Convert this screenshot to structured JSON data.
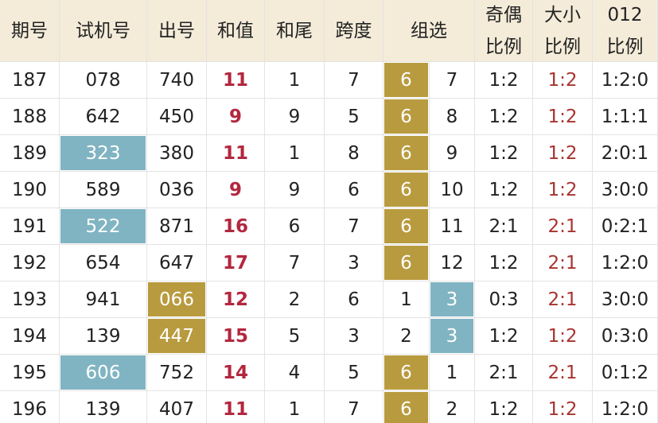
{
  "table": {
    "header": [
      [
        "期号"
      ],
      [
        "试机号"
      ],
      [
        "出号"
      ],
      [
        "和值"
      ],
      [
        "和尾"
      ],
      [
        "跨度"
      ],
      [
        "组选"
      ],
      [
        "奇偶",
        "比例"
      ],
      [
        "大小",
        "比例"
      ],
      [
        "012",
        "比例"
      ]
    ],
    "sum_column": 3,
    "ratio_red_column": 10,
    "colors": {
      "header": "#f4ecd9",
      "gold": "#b99b3f",
      "blue": "#81b4c2",
      "sum": "#b2283f",
      "red": "#a8332f"
    },
    "rows": [
      {
        "cells": [
          "187",
          "078",
          "740",
          "11",
          "1",
          "7",
          "6",
          "7",
          "1:2",
          "1:2",
          "1:2:0"
        ],
        "gold": [
          6
        ],
        "blue": []
      },
      {
        "cells": [
          "188",
          "642",
          "450",
          "9",
          "9",
          "5",
          "6",
          "8",
          "1:2",
          "1:2",
          "1:1:1"
        ],
        "gold": [
          6
        ],
        "blue": []
      },
      {
        "cells": [
          "189",
          "323",
          "380",
          "11",
          "1",
          "8",
          "6",
          "9",
          "1:2",
          "1:2",
          "2:0:1"
        ],
        "gold": [
          6
        ],
        "blue": [
          1
        ]
      },
      {
        "cells": [
          "190",
          "589",
          "036",
          "9",
          "9",
          "6",
          "6",
          "10",
          "1:2",
          "1:2",
          "3:0:0"
        ],
        "gold": [
          6
        ],
        "blue": []
      },
      {
        "cells": [
          "191",
          "522",
          "871",
          "16",
          "6",
          "7",
          "6",
          "11",
          "2:1",
          "2:1",
          "0:2:1"
        ],
        "gold": [
          6
        ],
        "blue": [
          1
        ]
      },
      {
        "cells": [
          "192",
          "654",
          "647",
          "17",
          "7",
          "3",
          "6",
          "12",
          "1:2",
          "2:1",
          "1:2:0"
        ],
        "gold": [
          6
        ],
        "blue": []
      },
      {
        "cells": [
          "193",
          "941",
          "066",
          "12",
          "2",
          "6",
          "1",
          "3",
          "0:3",
          "2:1",
          "3:0:0"
        ],
        "gold": [
          2
        ],
        "blue": [
          7
        ]
      },
      {
        "cells": [
          "194",
          "139",
          "447",
          "15",
          "5",
          "3",
          "2",
          "3",
          "1:2",
          "1:2",
          "0:3:0"
        ],
        "gold": [
          2
        ],
        "blue": [
          7
        ]
      },
      {
        "cells": [
          "195",
          "606",
          "752",
          "14",
          "4",
          "5",
          "6",
          "1",
          "2:1",
          "2:1",
          "0:1:2"
        ],
        "gold": [
          6
        ],
        "blue": [
          1
        ]
      },
      {
        "cells": [
          "196",
          "139",
          "407",
          "11",
          "1",
          "7",
          "6",
          "2",
          "1:2",
          "1:2",
          "1:2:0"
        ],
        "gold": [
          6
        ],
        "blue": []
      }
    ]
  }
}
